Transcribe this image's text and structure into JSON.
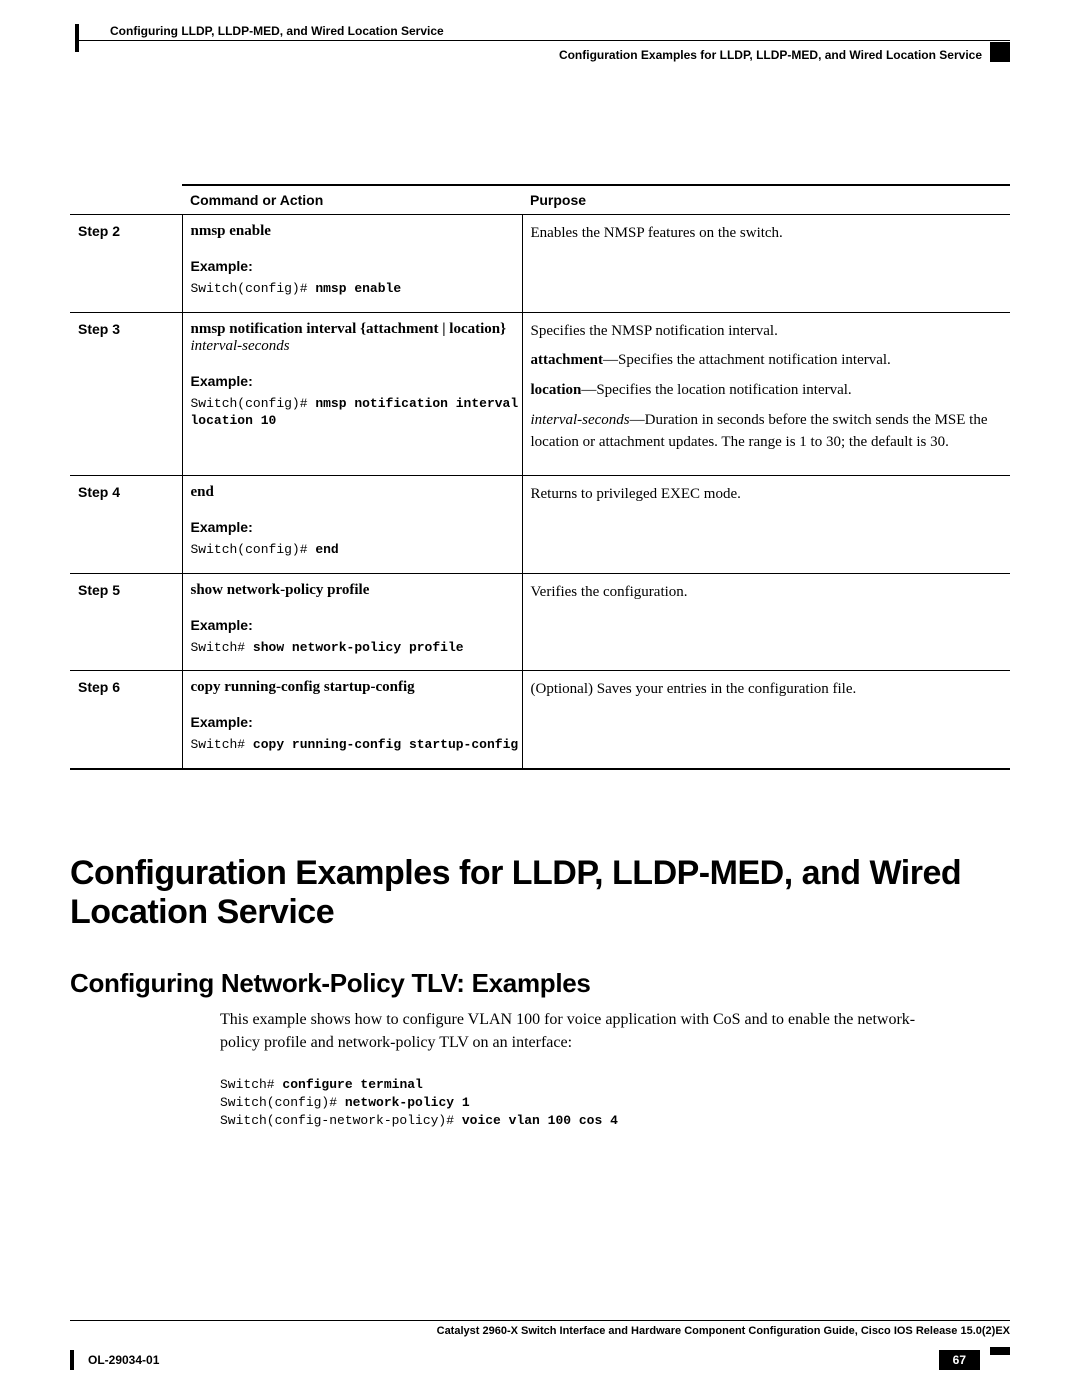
{
  "header": {
    "left_title": "Configuring LLDP, LLDP-MED, and Wired Location Service",
    "right_title": "Configuration Examples for LLDP, LLDP-MED, and Wired Location Service"
  },
  "table": {
    "columns": {
      "col1": "",
      "col2": "Command or Action",
      "col3": "Purpose"
    },
    "example_label": "Example:",
    "rows": [
      {
        "step": "Step 2",
        "command": "nmsp enable",
        "command_args": "",
        "example_prefix": "Switch(config)# ",
        "example_cmd": "nmsp enable",
        "purpose_lines": [
          {
            "text": "Enables the NMSP features on the switch."
          }
        ]
      },
      {
        "step": "Step 3",
        "command": "nmsp notification interval {attachment | location}",
        "command_args": "interval-seconds",
        "example_prefix": "Switch(config)# ",
        "example_cmd": "nmsp notification interval\nlocation 10",
        "purpose_lines": [
          {
            "text": "Specifies the NMSP notification interval."
          },
          {
            "bold": "attachment",
            "rest": "—Specifies the attachment notification interval."
          },
          {
            "bold": "location",
            "rest": "—Specifies the location notification interval."
          },
          {
            "ital": "interval-seconds",
            "rest": "—Duration in seconds before the switch sends the MSE the location or attachment updates. The range is 1 to 30; the default is 30."
          }
        ]
      },
      {
        "step": "Step 4",
        "command": "end",
        "command_args": "",
        "example_prefix": "Switch(config)# ",
        "example_cmd": "end",
        "purpose_lines": [
          {
            "text": "Returns to privileged EXEC mode."
          }
        ]
      },
      {
        "step": "Step 5",
        "command": "show network-policy profile",
        "command_args": "",
        "example_prefix": "Switch# ",
        "example_cmd": "show network-policy profile",
        "purpose_lines": [
          {
            "text": "Verifies the configuration."
          }
        ]
      },
      {
        "step": "Step 6",
        "command": "copy running-config startup-config",
        "command_args": "",
        "example_prefix": "Switch# ",
        "example_cmd": "copy running-config startup-config",
        "purpose_lines": [
          {
            "text": "(Optional) Saves your entries in the configuration file."
          }
        ]
      }
    ]
  },
  "section_heading": "Configuration Examples for LLDP, LLDP-MED, and Wired Location Service",
  "subsection_heading": "Configuring Network-Policy TLV: Examples",
  "body_paragraph": "This example shows how to configure VLAN 100 for voice application with CoS and to enable the network-policy profile and network-policy TLV on an interface:",
  "code_example": [
    {
      "pre": "Switch# ",
      "cmd": "configure terminal"
    },
    {
      "pre": "Switch(config)# ",
      "cmd": "network-policy 1"
    },
    {
      "pre": "Switch(config-network-policy)# ",
      "cmd": "voice vlan 100 cos 4"
    }
  ],
  "footer": {
    "guide_title": "Catalyst 2960-X Switch Interface and Hardware Component Configuration Guide, Cisco IOS Release 15.0(2)EX",
    "doc_id": "OL-29034-01",
    "page": "67"
  },
  "colors": {
    "text": "#000000",
    "bg": "#ffffff",
    "rule": "#000000",
    "pagenum_bg": "#000000",
    "pagenum_fg": "#ffffff"
  }
}
